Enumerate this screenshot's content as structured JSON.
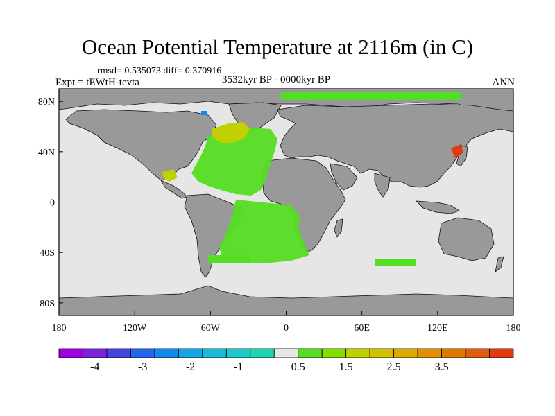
{
  "title": "Ocean Potential Temperature at 2116m (in C)",
  "stats": "rmsd= 0.535073 diff= 0.370916",
  "experiment": "Expt = tEWtH-tevta",
  "period": "3532kyr BP - 0000kyr BP",
  "season": "ANN",
  "axes": {
    "x_ticks": [
      "180",
      "120W",
      "60W",
      "0",
      "60E",
      "120E",
      "180"
    ],
    "y_ticks": [
      "80N",
      "40N",
      "0",
      "40S",
      "80S"
    ]
  },
  "colorbar": {
    "labels": [
      "-4",
      "-3",
      "-2",
      "-1",
      "0.5",
      "1.5",
      "2.5",
      "3.5"
    ],
    "colors": [
      "#a000e0",
      "#7a22d8",
      "#4444dd",
      "#2266ee",
      "#1188ee",
      "#12a6e6",
      "#18bcd8",
      "#1ec8c8",
      "#20d4b0",
      "#e6e6e6",
      "#55dd22",
      "#88dd00",
      "#c0d000",
      "#d4c000",
      "#dcaa00",
      "#e09000",
      "#e07800",
      "#e05a10",
      "#e03a10"
    ]
  },
  "chart_data": {
    "type": "heatmap",
    "variable": "Ocean Potential Temperature at 2116m (in C)",
    "lon_range": [
      -180,
      180
    ],
    "lat_range": [
      -90,
      90
    ],
    "land_color": "#999999",
    "background_color": "#e6e6e6",
    "anomaly_regions": [
      {
        "region": "North Atlantic",
        "value": 0.5
      },
      {
        "region": "Labrador Sea",
        "value": 2.0
      },
      {
        "region": "Gulf of Mexico",
        "value": 2.0
      },
      {
        "region": "Sea of Japan",
        "value": 3.5
      },
      {
        "region": "South Atlantic",
        "value": 0.5
      },
      {
        "region": "Arctic Ocean",
        "value": 0.5
      },
      {
        "region": "Greenland Sea",
        "value": -2.0
      }
    ]
  }
}
